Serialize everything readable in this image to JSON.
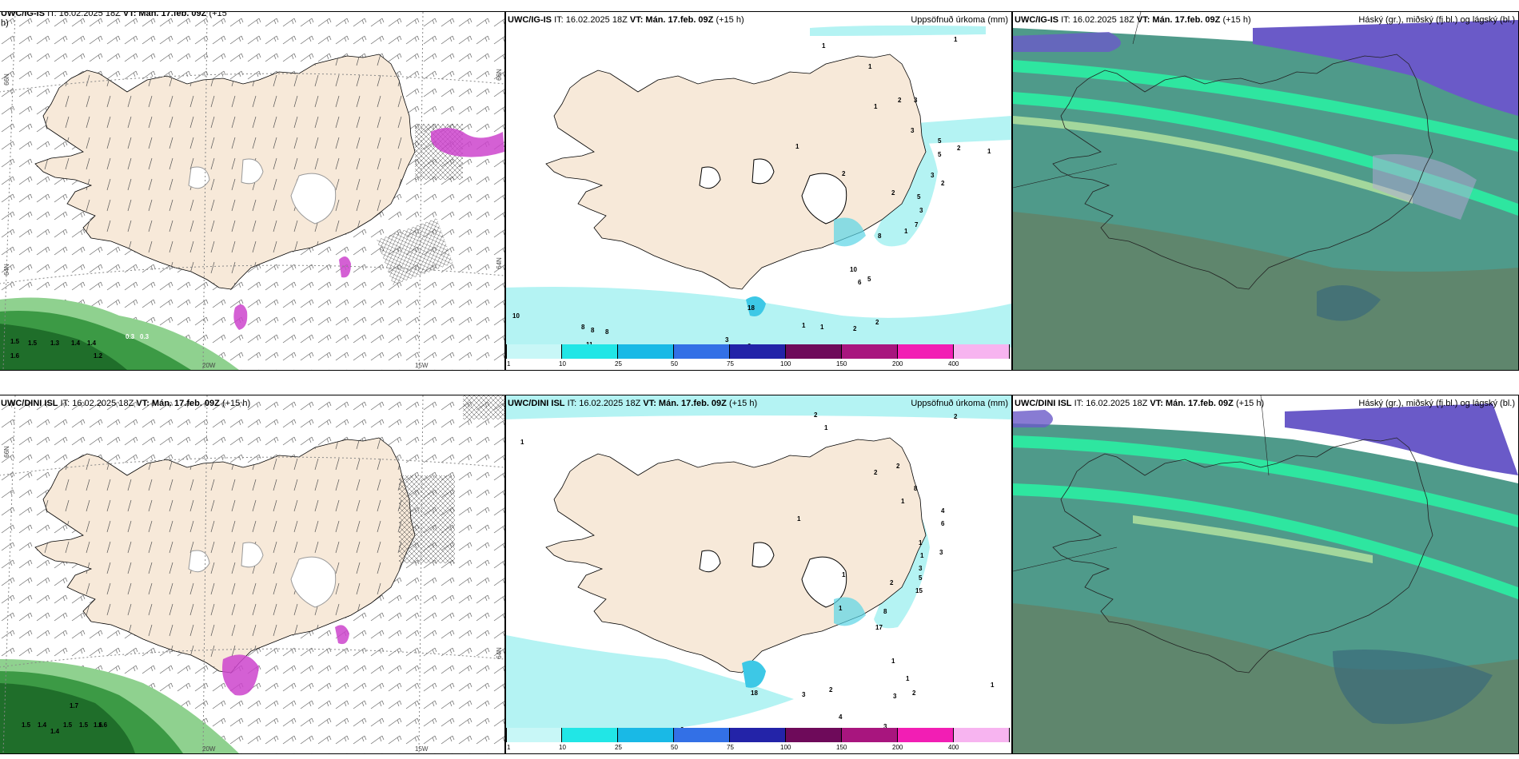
{
  "rows": [
    {
      "wind": {
        "model_label": "UWC/IG-IS",
        "it_label": "IT: 16.02.2025 18Z",
        "vt_label": "VT: Mán. 17.feb. 09Z",
        "step_label": "(+15",
        "step_wrap": "h)",
        "values": [
          "0.3",
          "0.3",
          "1.3",
          "1.2",
          "1.5",
          "1.4",
          "1.5",
          "1.6",
          "1.4"
        ]
      },
      "precip": {
        "model_label": "UWC/IG-IS",
        "it_label": "IT: 16.02.2025 18Z",
        "vt_label": "VT: Mán. 17.feb. 09Z",
        "step_label": "(+15 h)",
        "right_label": "Uppsöfnuð úrkoma (mm)",
        "values": [
          "1",
          "1",
          "1",
          "2",
          "3",
          "3",
          "1",
          "5",
          "5",
          "2",
          "3",
          "1",
          "2",
          "1",
          "2",
          "5",
          "2",
          "3",
          "7",
          "1",
          "8",
          "10",
          "18",
          "5",
          "6",
          "1",
          "2",
          "2",
          "1",
          "2",
          "10",
          "8",
          "8",
          "8",
          "11",
          "3",
          "3"
        ]
      },
      "cloud": {
        "model_label": "UWC/IG-IS",
        "it_label": "IT: 16.02.2025 18Z",
        "vt_label": "VT: Mán. 17.feb. 09Z",
        "step_label": "(+15 h)",
        "right_label": "Háský (gr.), miðský (fj.bl.) og lágský (bl.)"
      }
    },
    {
      "wind": {
        "model_label": "UWC/DINI ISL",
        "it_label": "IT: 16.02.2025 18Z",
        "vt_label": "VT: Mán. 17.feb. 09Z",
        "step_label": "(+15 h)",
        "step_wrap": "",
        "values": [
          "1.7",
          "1.6",
          "1.5",
          "1.4",
          "1.5",
          "1.5",
          "1.6",
          "1.4"
        ]
      },
      "precip": {
        "model_label": "UWC/DINI ISL",
        "it_label": "IT: 16.02.2025 18Z",
        "vt_label": "VT: Mán. 17.feb. 09Z",
        "step_label": "(+15 h)",
        "right_label": "Uppsöfnuð úrkoma (mm)",
        "values": [
          "2",
          "1",
          "2",
          "1",
          "2",
          "2",
          "8",
          "1",
          "4",
          "6",
          "3",
          "1",
          "1",
          "2",
          "3",
          "5",
          "15",
          "1",
          "8",
          "17",
          "1",
          "1",
          "1",
          "1",
          "18",
          "3",
          "2",
          "3",
          "2",
          "4",
          "3",
          "2",
          "1"
        ]
      },
      "cloud": {
        "model_label": "UWC/DINI ISL",
        "it_label": "IT: 16.02.2025 18Z",
        "vt_label": "VT: Mán. 17.feb. 09Z",
        "step_label": "(+15 h)",
        "right_label": "Háský (gr.), miðský (fj.bl.) og lágský (bl.)"
      }
    }
  ],
  "axes": {
    "lon_20w": "20W",
    "lon_15w": "15W",
    "lat_66n": "66N",
    "lat_64n": "64N"
  },
  "colorbar": {
    "ticks": [
      "1",
      "10",
      "25",
      "50",
      "75",
      "100",
      "150",
      "200",
      "400"
    ],
    "colors": [
      "#c8f7f7",
      "#21e6e6",
      "#19b9e6",
      "#3370e6",
      "#2323a8",
      "#6e0a5a",
      "#a8157e",
      "#f21eb4",
      "#f7b4f0"
    ]
  },
  "colors": {
    "land": "#f7e9d9",
    "ocean_green_dark": "#1f6e2a",
    "ocean_green_light": "#8fd18f",
    "cyan": "#b4f3f3",
    "magenta": "#cc44cc",
    "cloud_base": "#4f9a8a",
    "cloud_high": "#6a5ac8",
    "cloud_band": "#2ee6a0"
  }
}
